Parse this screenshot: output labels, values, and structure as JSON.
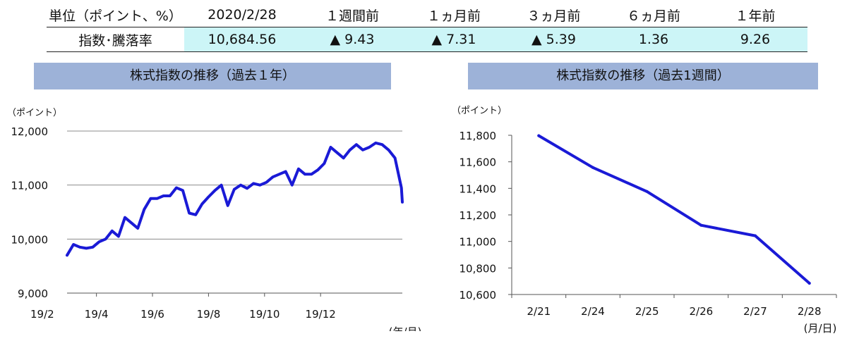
{
  "summary": {
    "headers": [
      "単位（ポイント、%）",
      "2020/2/28",
      "１週間前",
      "１ヵ月前",
      "３ヵ月前",
      "６ヵ月前",
      "１年前"
    ],
    "row_label": "指数･騰落率",
    "values": [
      "10,684.56",
      "▲ 9.43",
      "▲ 7.31",
      "▲ 5.39",
      "1.36",
      "9.26"
    ]
  },
  "colors": {
    "line": "#1a1ad6",
    "header_bg": "#9db2d8",
    "value_bg": "#ccf5f7",
    "grid": "#8c8c8c"
  },
  "chart_data": [
    {
      "type": "line",
      "title": "株式指数の推移（過去１年）",
      "ylabel": "（ポイント）",
      "xlabel": "(年/月)",
      "ylim": [
        9000,
        12000
      ],
      "yticks": [
        9000,
        10000,
        11000,
        12000
      ],
      "ytick_labels": [
        "9,000",
        "10,000",
        "11,000",
        "12,000"
      ],
      "xtick_labels": [
        "19/2",
        "19/4",
        "19/6",
        "19/8",
        "19/10",
        "19/12"
      ],
      "x_months": [
        "2019-02",
        "2019-04",
        "2019-06",
        "2019-08",
        "2019-10",
        "2019-12"
      ],
      "x_range": [
        "2019-02-28",
        "2020-02-28"
      ],
      "grid": true,
      "series": [
        {
          "x": [
            "2019-02-28",
            "2019-03-07",
            "2019-03-14",
            "2019-03-21",
            "2019-03-28",
            "2019-04-04",
            "2019-04-11",
            "2019-04-18",
            "2019-04-25",
            "2019-05-02",
            "2019-05-09",
            "2019-05-16",
            "2019-05-23",
            "2019-05-30",
            "2019-06-06",
            "2019-06-13",
            "2019-06-20",
            "2019-06-27",
            "2019-07-04",
            "2019-07-11",
            "2019-07-18",
            "2019-07-25",
            "2019-08-01",
            "2019-08-08",
            "2019-08-15",
            "2019-08-22",
            "2019-08-29",
            "2019-09-05",
            "2019-09-12",
            "2019-09-19",
            "2019-09-26",
            "2019-10-03",
            "2019-10-10",
            "2019-10-17",
            "2019-10-24",
            "2019-10-31",
            "2019-11-07",
            "2019-11-14",
            "2019-11-21",
            "2019-11-28",
            "2019-12-05",
            "2019-12-12",
            "2019-12-19",
            "2019-12-26",
            "2020-01-02",
            "2020-01-09",
            "2020-01-16",
            "2020-01-23",
            "2020-01-30",
            "2020-02-06",
            "2020-02-13",
            "2020-02-20",
            "2020-02-27",
            "2020-02-28"
          ],
          "values": [
            9700,
            9900,
            9850,
            9830,
            9850,
            9950,
            10000,
            10150,
            10050,
            10400,
            10300,
            10200,
            10550,
            10750,
            10750,
            10800,
            10800,
            10950,
            10900,
            10480,
            10450,
            10650,
            10780,
            10900,
            11000,
            10620,
            10920,
            11000,
            10940,
            11030,
            11000,
            11050,
            11150,
            11200,
            11250,
            11000,
            11300,
            11200,
            11200,
            11280,
            11400,
            11700,
            11600,
            11500,
            11650,
            11750,
            11650,
            11700,
            11780,
            11750,
            11650,
            11500,
            10950,
            10684
          ]
        }
      ]
    },
    {
      "type": "line",
      "title": "株式指数の推移（過去1週間）",
      "ylabel": "（ポイント）",
      "xlabel": "(月/日)",
      "ylim": [
        10600,
        11800
      ],
      "yticks": [
        10600,
        10800,
        11000,
        11200,
        11400,
        11600,
        11800
      ],
      "ytick_labels": [
        "10,600",
        "10,800",
        "11,000",
        "11,200",
        "11,400",
        "11,600",
        "11,800"
      ],
      "categories": [
        "2/21",
        "2/24",
        "2/25",
        "2/26",
        "2/27",
        "2/28"
      ],
      "grid": false,
      "series": [
        {
          "values": [
            11797,
            11557,
            11376,
            11122,
            11043,
            10685
          ]
        }
      ]
    }
  ]
}
